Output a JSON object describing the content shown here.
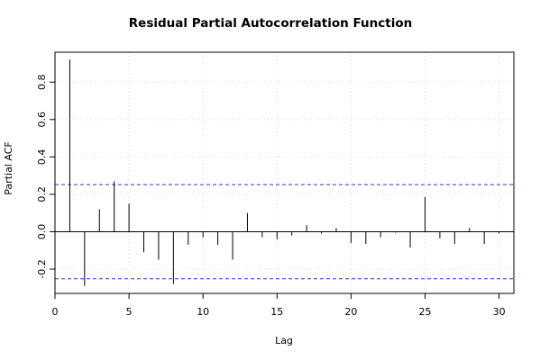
{
  "chart_data": {
    "type": "bar",
    "title": "Residual Partial Autocorrelation Function",
    "xlabel": "Lag",
    "ylabel": "Partial ACF",
    "xlim": [
      0,
      31
    ],
    "ylim": [
      -0.33,
      0.96
    ],
    "xticks": [
      0,
      5,
      10,
      15,
      20,
      25,
      30
    ],
    "yticks": [
      -0.2,
      0.0,
      0.2,
      0.4,
      0.6,
      0.8
    ],
    "ytick_labels": [
      "-0.2",
      "0.0",
      "0.2",
      "0.4",
      "0.6",
      "0.8"
    ],
    "grid": true,
    "confidence_bounds": [
      0.252,
      -0.252
    ],
    "lags": [
      1,
      2,
      3,
      4,
      5,
      6,
      7,
      8,
      9,
      10,
      11,
      12,
      13,
      14,
      15,
      16,
      17,
      18,
      19,
      20,
      21,
      22,
      23,
      24,
      25,
      26,
      27,
      28,
      29,
      30
    ],
    "values": [
      0.92,
      -0.29,
      0.12,
      0.27,
      0.15,
      -0.11,
      -0.15,
      -0.28,
      -0.07,
      -0.03,
      -0.07,
      -0.15,
      0.1,
      -0.03,
      -0.04,
      -0.02,
      0.035,
      -0.01,
      0.02,
      -0.06,
      -0.065,
      -0.03,
      -0.005,
      -0.085,
      0.185,
      -0.035,
      -0.065,
      0.02,
      -0.065,
      -0.01
    ],
    "colors": {
      "bars": "#000000",
      "bounds": "#3333cc",
      "grid": "#d8d8d8",
      "frame": "#000000"
    }
  }
}
